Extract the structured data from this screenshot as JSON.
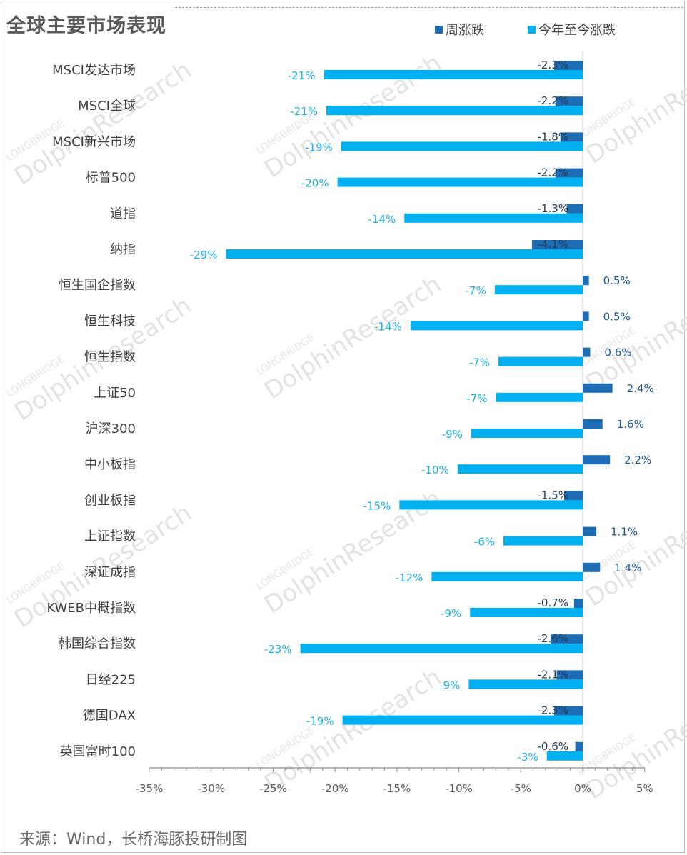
{
  "title": "全球主要市场表现",
  "legend": {
    "weekly": "周涨跌",
    "ytd": "今年至今涨跌"
  },
  "colors": {
    "weekly": "#1d6cb4",
    "ytd": "#00b0f0",
    "weekly_label": "#1f3a5a",
    "ytd_label": "#1eb1e8"
  },
  "source": "来源：Wind，长桥海豚投研制图",
  "watermark": {
    "brand": "DolphinResearch",
    "sub": "LONGBRIDGE"
  },
  "chart_data": {
    "type": "bar",
    "orientation": "horizontal",
    "title": "全球主要市场表现",
    "xlabel": "",
    "ylabel": "",
    "xlim": [
      -35,
      5
    ],
    "xticks": [
      -35,
      -30,
      -25,
      -20,
      -15,
      -10,
      -5,
      0,
      5
    ],
    "tick_labels": [
      "-35%",
      "-30%",
      "-25%",
      "-20%",
      "-15%",
      "-10%",
      "-5%",
      "0%",
      "5%"
    ],
    "legend_position": "top-right",
    "categories": [
      "MSCI发达市场",
      "MSCI全球",
      "MSCI新兴市场",
      "标普500",
      "道指",
      "纳指",
      "恒生国企指数",
      "恒生科技",
      "恒生指数",
      "上证50",
      "沪深300",
      "中小板指",
      "创业板指",
      "上证指数",
      "深证成指",
      "KWEB中概指数",
      "韩国综合指数",
      "日经225",
      "德国DAX",
      "英国富时100"
    ],
    "series": [
      {
        "name": "周涨跌",
        "values": [
          -2.3,
          -2.2,
          -1.8,
          -2.2,
          -1.3,
          -4.1,
          0.5,
          0.5,
          0.6,
          2.4,
          1.6,
          2.2,
          -1.5,
          1.1,
          1.4,
          -0.7,
          -2.6,
          -2.1,
          -2.3,
          -0.6
        ],
        "labels": [
          "-2.3%",
          "-2.2%",
          "-1.8%",
          "-2.2%",
          "-1.3%",
          "-4.1%",
          "0.5%",
          "0.5%",
          "0.6%",
          "2.4%",
          "1.6%",
          "2.2%",
          "-1.5%",
          "1.1%",
          "1.4%",
          "-0.7%",
          "-2.6%",
          "-2.1%",
          "-2.3%",
          "-0.6%"
        ]
      },
      {
        "name": "今年至今涨跌",
        "values": [
          -20.9,
          -20.7,
          -19.5,
          -19.8,
          -14.4,
          -28.8,
          -7.1,
          -13.9,
          -6.8,
          -7.0,
          -9.0,
          -10.1,
          -14.8,
          -6.4,
          -12.2,
          -9.1,
          -22.8,
          -9.2,
          -19.4,
          -2.9
        ],
        "labels": [
          "-21%",
          "-21%",
          "-19%",
          "-20%",
          "-14%",
          "-29%",
          "-7%",
          "-14%",
          "-7%",
          "-7%",
          "-9%",
          "-10%",
          "-15%",
          "-6%",
          "-12%",
          "-9%",
          "-23%",
          "-9%",
          "-19%",
          "-3%"
        ]
      }
    ]
  }
}
